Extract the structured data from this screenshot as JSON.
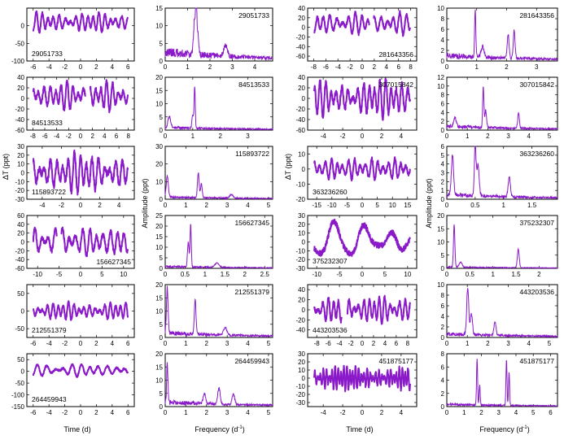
{
  "figure": {
    "line_color": "#8a19c9",
    "time_xlabel": "Time (d)",
    "freq_xlabel": "Frequency (d",
    "freq_xlabel_sup": "-1",
    "freq_xlabel_end": ")",
    "time_ylabel": "ΔT (ppt)",
    "freq_ylabel": "Amplitude (ppt)"
  },
  "chart_data": [
    {
      "type": "line",
      "kind": "time",
      "col": 0,
      "row": 0,
      "id": "29051733",
      "xticks": [
        -6,
        -4,
        -2,
        0,
        2,
        4,
        6
      ],
      "xlim": [
        -6.8,
        6.8
      ],
      "yticks": [
        -100,
        -50,
        0
      ],
      "ylim": [
        -100,
        50
      ],
      "period": 0.72,
      "amplitude": 22,
      "offset": 10,
      "gaps": [],
      "label_pos": "bottom-left"
    },
    {
      "type": "line",
      "kind": "freq",
      "col": 1,
      "row": 0,
      "id": "29051733",
      "xticks": [
        0,
        1,
        2,
        3,
        4
      ],
      "xlim": [
        0,
        4.8
      ],
      "yticks": [
        0,
        5,
        10,
        15
      ],
      "ylim": [
        0,
        15
      ],
      "peaks": [
        [
          1.38,
          13.5,
          0.03
        ],
        [
          1.3,
          9,
          0.04
        ],
        [
          1.45,
          6,
          0.04
        ],
        [
          2.7,
          3,
          0.08
        ]
      ],
      "floor": 3,
      "label_pos": "top-right"
    },
    {
      "type": "line",
      "kind": "time",
      "col": 2,
      "row": 0,
      "id": "281643356",
      "xticks": [
        -8,
        -6,
        -4,
        -2,
        0,
        2,
        4,
        6,
        8
      ],
      "xlim": [
        -9,
        9
      ],
      "yticks": [
        -60,
        -40,
        -20,
        0,
        20,
        40
      ],
      "ylim": [
        -70,
        40
      ],
      "period": 1.05,
      "amplitude": 18,
      "offset": 8,
      "gaps": [
        [
          1.2,
          1.9
        ]
      ],
      "label_pos": "bottom-right"
    },
    {
      "type": "line",
      "kind": "freq",
      "col": 3,
      "row": 0,
      "id": "281643356",
      "xticks": [
        0,
        1,
        2,
        3
      ],
      "xlim": [
        0,
        3.7
      ],
      "yticks": [
        0,
        2,
        4,
        6,
        8,
        10
      ],
      "ylim": [
        0,
        10
      ],
      "peaks": [
        [
          0.95,
          9,
          0.02
        ],
        [
          2.25,
          5.2,
          0.03
        ],
        [
          2.05,
          4.5,
          0.03
        ],
        [
          1.2,
          2,
          0.05
        ]
      ],
      "floor": 1.2,
      "label_pos": "top-right"
    },
    {
      "type": "line",
      "kind": "time",
      "col": 0,
      "row": 1,
      "id": "84513533",
      "xticks": [
        -8,
        -6,
        -4,
        -2,
        0,
        2,
        4,
        6,
        8
      ],
      "xlim": [
        -9,
        9
      ],
      "yticks": [
        -60,
        -40,
        -20,
        0,
        20,
        40
      ],
      "ylim": [
        -60,
        40
      ],
      "period": 0.95,
      "amplitude": 22,
      "offset": 5,
      "gaps": [
        [
          0.8,
          1.6
        ]
      ],
      "label_pos": "bottom-left"
    },
    {
      "type": "line",
      "kind": "freq",
      "col": 1,
      "row": 1,
      "id": "84513533",
      "xticks": [
        0,
        1,
        2,
        3
      ],
      "xlim": [
        0,
        3.9
      ],
      "yticks": [
        0,
        5,
        10,
        15,
        20
      ],
      "ylim": [
        0,
        20
      ],
      "peaks": [
        [
          1.07,
          15.5,
          0.02
        ],
        [
          1.0,
          5,
          0.03
        ],
        [
          0.15,
          4,
          0.05
        ]
      ],
      "floor": 1.2,
      "label_pos": "top-right"
    },
    {
      "type": "line",
      "kind": "time",
      "col": 2,
      "row": 1,
      "id": "307015842",
      "xticks": [
        -4,
        -2,
        0,
        2,
        4
      ],
      "xlim": [
        -5.6,
        5.6
      ],
      "yticks": [
        -60,
        -40,
        -20,
        0,
        20,
        40
      ],
      "ylim": [
        -60,
        40
      ],
      "period": 0.56,
      "amplitude": 28,
      "offset": 0,
      "gaps": [],
      "label_pos": "top-right"
    },
    {
      "type": "line",
      "kind": "freq",
      "col": 3,
      "row": 1,
      "id": "307015842",
      "xticks": [
        0,
        1,
        2,
        3,
        4,
        5
      ],
      "xlim": [
        0,
        5.4
      ],
      "yticks": [
        0,
        2,
        4,
        6,
        8,
        10,
        12
      ],
      "ylim": [
        0,
        12
      ],
      "peaks": [
        [
          1.78,
          9.5,
          0.03
        ],
        [
          1.9,
          4,
          0.04
        ],
        [
          3.5,
          3.5,
          0.04
        ],
        [
          0.4,
          2,
          0.06
        ]
      ],
      "floor": 1,
      "label_pos": "top-right"
    },
    {
      "type": "line",
      "kind": "time",
      "col": 0,
      "row": 2,
      "id": "115893722",
      "xticks": [
        -4,
        -2,
        0,
        2,
        4
      ],
      "xlim": [
        -5.6,
        5.6
      ],
      "yticks": [
        -30,
        -20,
        -10,
        0,
        10,
        20,
        30
      ],
      "ylim": [
        -30,
        30
      ],
      "period": 0.62,
      "amplitude": 18,
      "offset": 0,
      "gaps": [],
      "label_pos": "bottom-left"
    },
    {
      "type": "line",
      "kind": "freq",
      "col": 1,
      "row": 2,
      "id": "115893722",
      "xticks": [
        0,
        1,
        2,
        3,
        4,
        5
      ],
      "xlim": [
        0,
        5.2
      ],
      "yticks": [
        0,
        10,
        20,
        30
      ],
      "ylim": [
        0,
        30
      ],
      "peaks": [
        [
          1.6,
          14,
          0.04
        ],
        [
          0.1,
          12,
          0.05
        ],
        [
          1.75,
          8,
          0.04
        ],
        [
          3.2,
          2,
          0.08
        ]
      ],
      "floor": 1.5,
      "label_pos": "top-right"
    },
    {
      "type": "line",
      "kind": "time",
      "col": 2,
      "row": 2,
      "id": "363236260",
      "xticks": [
        -15,
        -10,
        -5,
        0,
        5,
        10,
        15
      ],
      "xlim": [
        -18,
        18
      ],
      "yticks": [
        -20,
        -10,
        0,
        10
      ],
      "ylim": [
        -20,
        15
      ],
      "period": 1.9,
      "amplitude": 6,
      "offset": 0,
      "gaps": [],
      "label_pos": "bottom-left"
    },
    {
      "type": "line",
      "kind": "freq",
      "col": 3,
      "row": 2,
      "id": "363236260",
      "xticks": [
        0,
        0.5,
        1,
        1.5
      ],
      "xlim": [
        0,
        1.95
      ],
      "yticks": [
        0,
        1,
        2,
        3,
        4,
        5,
        6
      ],
      "ylim": [
        0,
        6
      ],
      "peaks": [
        [
          0.5,
          5.8,
          0.015
        ],
        [
          0.1,
          4.5,
          0.02
        ],
        [
          0.55,
          3.5,
          0.02
        ],
        [
          1.1,
          2.2,
          0.02
        ]
      ],
      "floor": 0.6,
      "label_pos": "top-right"
    },
    {
      "type": "line",
      "kind": "time",
      "col": 0,
      "row": 3,
      "id": "156627345",
      "xticks": [
        -10,
        -5,
        0,
        5,
        10
      ],
      "xlim": [
        -12.5,
        12.5
      ],
      "yticks": [
        -60,
        -40,
        -20,
        0,
        20,
        40,
        60
      ],
      "ylim": [
        -60,
        60
      ],
      "period": 1.6,
      "amplitude": 28,
      "offset": 0,
      "gaps": [
        [
          -5.5,
          -4.5
        ]
      ],
      "label_pos": "bottom-right"
    },
    {
      "type": "line",
      "kind": "freq",
      "col": 1,
      "row": 3,
      "id": "156627345",
      "xticks": [
        0,
        0.5,
        1,
        1.5,
        2,
        2.5
      ],
      "xlim": [
        0,
        2.7
      ],
      "yticks": [
        0,
        5,
        10,
        15,
        20,
        25
      ],
      "ylim": [
        0,
        25
      ],
      "peaks": [
        [
          0.64,
          20.5,
          0.015
        ],
        [
          0.58,
          12,
          0.02
        ],
        [
          1.3,
          2,
          0.05
        ]
      ],
      "floor": 1,
      "label_pos": "top-right"
    },
    {
      "type": "line",
      "kind": "time",
      "col": 2,
      "row": 3,
      "id": "375232307",
      "xticks": [
        -10,
        -5,
        0,
        5,
        10
      ],
      "xlim": [
        -12,
        12
      ],
      "yticks": [
        -30,
        -20,
        -10,
        0,
        10,
        20,
        30
      ],
      "ylim": [
        -30,
        30
      ],
      "period": 6.2,
      "amplitude": 18,
      "offset": 0,
      "gaps": [],
      "label_pos": "bottom-left"
    },
    {
      "type": "line",
      "kind": "freq",
      "col": 3,
      "row": 3,
      "id": "375232307",
      "xticks": [
        0,
        0.5,
        1,
        1.5,
        2
      ],
      "xlim": [
        0,
        2.4
      ],
      "yticks": [
        0,
        5,
        10,
        15,
        20
      ],
      "ylim": [
        0,
        20
      ],
      "peaks": [
        [
          0.16,
          16,
          0.015
        ],
        [
          1.55,
          7,
          0.02
        ],
        [
          0.3,
          2,
          0.03
        ]
      ],
      "floor": 0.6,
      "label_pos": "top-right"
    },
    {
      "type": "line",
      "kind": "time",
      "col": 0,
      "row": 4,
      "id": "212551379",
      "xticks": [
        -6,
        -4,
        -2,
        0,
        2,
        4,
        6
      ],
      "xlim": [
        -6.8,
        6.8
      ],
      "yticks": [
        -50,
        0,
        50
      ],
      "ylim": [
        -75,
        75
      ],
      "period": 0.66,
      "amplitude": 20,
      "offset": 0,
      "gaps": [],
      "label_pos": "bottom-left"
    },
    {
      "type": "line",
      "kind": "freq",
      "col": 1,
      "row": 4,
      "id": "212551379",
      "xticks": [
        0,
        1,
        2,
        3,
        4,
        5
      ],
      "xlim": [
        0,
        5.2
      ],
      "yticks": [
        0,
        5,
        10,
        15,
        20
      ],
      "ylim": [
        0,
        20
      ],
      "peaks": [
        [
          1.45,
          13,
          0.04
        ],
        [
          0.1,
          17,
          0.04
        ],
        [
          2.9,
          3,
          0.08
        ]
      ],
      "floor": 2,
      "label_pos": "top-right"
    },
    {
      "type": "line",
      "kind": "time",
      "col": 2,
      "row": 4,
      "id": "443203536",
      "xticks": [
        -8,
        -6,
        -4,
        -2,
        0,
        2,
        4,
        6,
        8
      ],
      "xlim": [
        -9.6,
        9.6
      ],
      "yticks": [
        -40,
        -20,
        0,
        20,
        40
      ],
      "ylim": [
        -55,
        50
      ],
      "period": 0.9,
      "amplitude": 22,
      "offset": 0,
      "gaps": [
        [
          -3.6,
          -2.6
        ]
      ],
      "label_pos": "bottom-left"
    },
    {
      "type": "line",
      "kind": "freq",
      "col": 3,
      "row": 4,
      "id": "443203536",
      "xticks": [
        0,
        1,
        2,
        3,
        4,
        5
      ],
      "xlim": [
        0,
        5.4
      ],
      "yticks": [
        0,
        2,
        4,
        6,
        8,
        10
      ],
      "ylim": [
        0,
        10
      ],
      "peaks": [
        [
          1.02,
          8.8,
          0.05
        ],
        [
          2.35,
          2.6,
          0.05
        ],
        [
          1.2,
          4,
          0.05
        ]
      ],
      "floor": 0.8,
      "label_pos": "top-right"
    },
    {
      "type": "line",
      "kind": "time",
      "col": 0,
      "row": 5,
      "id": "264459943",
      "xticks": [
        -6,
        -4,
        -2,
        0,
        2,
        4,
        6
      ],
      "xlim": [
        -6.8,
        6.8
      ],
      "yticks": [
        -150,
        -100,
        -50,
        0,
        50
      ],
      "ylim": [
        -150,
        75
      ],
      "period": 1.1,
      "amplitude": 22,
      "offset": 5,
      "gaps": [],
      "label_pos": "bottom-left"
    },
    {
      "type": "line",
      "kind": "freq",
      "col": 1,
      "row": 5,
      "id": "264459943",
      "xticks": [
        0,
        1,
        2,
        3,
        4,
        5
      ],
      "xlim": [
        0,
        5.2
      ],
      "yticks": [
        0,
        5,
        10,
        15,
        20
      ],
      "ylim": [
        0,
        20
      ],
      "peaks": [
        [
          0.1,
          15,
          0.03
        ],
        [
          2.6,
          6,
          0.06
        ],
        [
          1.9,
          4,
          0.06
        ],
        [
          3.3,
          4,
          0.06
        ]
      ],
      "floor": 2,
      "label_pos": "top-right"
    },
    {
      "type": "line",
      "kind": "time",
      "col": 2,
      "row": 5,
      "id": "451875177",
      "xticks": [
        -4,
        -2,
        0,
        2,
        4
      ],
      "xlim": [
        -5.6,
        5.6
      ],
      "yticks": [
        -30,
        -20,
        -10,
        0,
        10,
        20,
        30
      ],
      "ylim": [
        -35,
        30
      ],
      "period": 0.3,
      "amplitude": 12,
      "offset": 0,
      "gaps": [],
      "label_pos": "top-right"
    },
    {
      "type": "line",
      "kind": "freq",
      "col": 3,
      "row": 5,
      "id": "451875177",
      "xticks": [
        0,
        1,
        2,
        3,
        4,
        5,
        6
      ],
      "xlim": [
        0,
        6.4
      ],
      "yticks": [
        0,
        2,
        4,
        6,
        8
      ],
      "ylim": [
        0,
        8
      ],
      "peaks": [
        [
          1.75,
          7,
          0.03
        ],
        [
          3.45,
          7,
          0.03
        ],
        [
          3.6,
          5,
          0.03
        ],
        [
          1.9,
          3,
          0.03
        ]
      ],
      "floor": 0.4,
      "label_pos": "top-right"
    }
  ]
}
